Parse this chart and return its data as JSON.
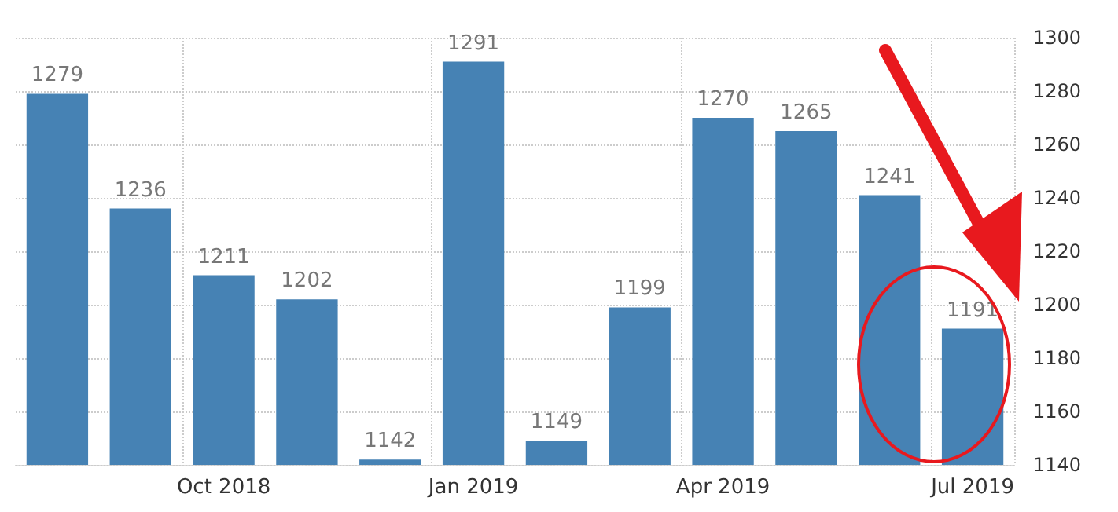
{
  "chart_data": {
    "type": "bar",
    "categories": [
      null,
      null,
      "Oct 2018",
      null,
      null,
      "Jan 2019",
      null,
      null,
      "Apr 2019",
      null,
      null,
      "Jul 2019"
    ],
    "values": [
      1279,
      1236,
      1211,
      1202,
      1142,
      1291,
      1149,
      1199,
      1270,
      1265,
      1241,
      1191
    ],
    "color": "#4682b4",
    "ylim": [
      1140,
      1300
    ],
    "yticks": [
      1140,
      1160,
      1180,
      1200,
      1220,
      1240,
      1260,
      1280,
      1300
    ],
    "grid": true,
    "data_labels": true
  }
}
